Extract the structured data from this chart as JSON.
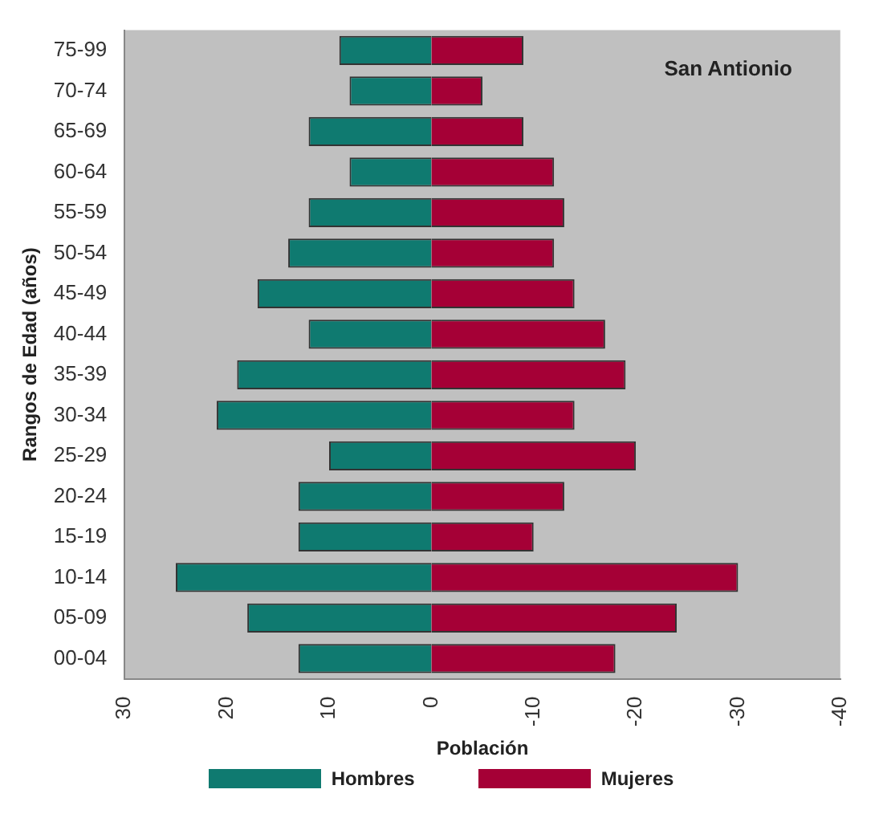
{
  "chart_data": {
    "type": "bar",
    "orientation": "horizontal",
    "stacked": true,
    "xlabel": "Población",
    "ylabel": "Rangos de Edad (años)",
    "categories": [
      "75-99",
      "70-74",
      "65-69",
      "60-64",
      "55-59",
      "50-54",
      "45-49",
      "40-44",
      "35-39",
      "30-34",
      "25-29",
      "20-24",
      "15-19",
      "10-14",
      "05-09",
      "00-04"
    ],
    "series": [
      {
        "name": "Hombres",
        "color": "#0f7a70",
        "values": [
          9,
          8,
          12,
          8,
          12,
          14,
          17,
          12,
          19,
          21,
          10,
          13,
          13,
          25,
          18,
          13
        ]
      },
      {
        "name": "Mujeres",
        "color": "#a50036",
        "values": [
          -9,
          -5,
          -9,
          -12,
          -13,
          -12,
          -14,
          -17,
          -19,
          -14,
          -20,
          -13,
          -10,
          -30,
          -24,
          -18
        ]
      }
    ],
    "xlim": [
      30,
      -40
    ],
    "xticks": [
      30,
      20,
      10,
      0,
      -10,
      -20,
      -30,
      -40
    ],
    "annotations": [
      "San Antionio"
    ],
    "grid": false,
    "legend": "bottom"
  }
}
